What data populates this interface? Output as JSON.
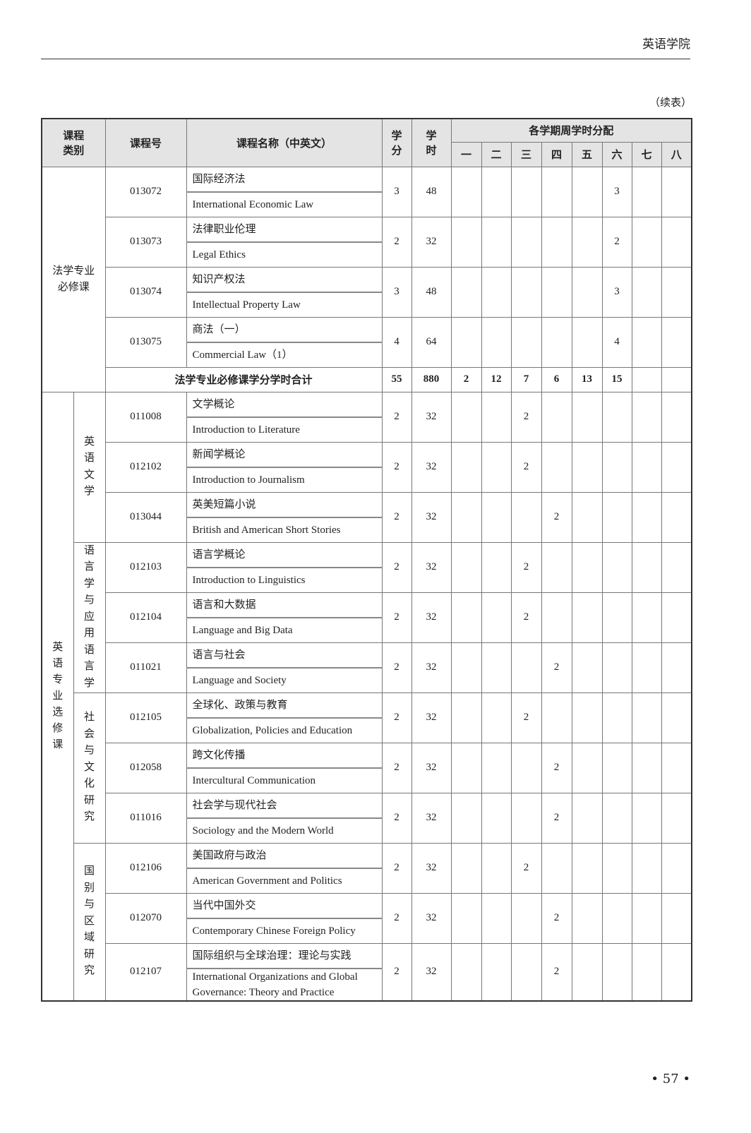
{
  "page": {
    "header_title": "英语学院",
    "continued_label": "（续表）",
    "page_number": "• 57 •"
  },
  "table": {
    "headers": {
      "category": "课程\n类别",
      "code": "课程号",
      "name": "课程名称（中英文）",
      "credits": "学\n分",
      "hours": "学\n时",
      "semester_group": "各学期周学时分配",
      "semesters": [
        "一",
        "二",
        "三",
        "四",
        "五",
        "六",
        "七",
        "八"
      ]
    },
    "groups": [
      {
        "category": "法学专业\n必修课",
        "subgroups": [
          {
            "name": "",
            "courses": [
              {
                "code": "013072",
                "cn": "国际经济法",
                "en": "International Economic Law",
                "credits": "3",
                "hours": "48",
                "sem": [
                  "",
                  "",
                  "",
                  "",
                  "",
                  "3",
                  "",
                  ""
                ]
              },
              {
                "code": "013073",
                "cn": "法律职业伦理",
                "en": "Legal Ethics",
                "credits": "2",
                "hours": "32",
                "sem": [
                  "",
                  "",
                  "",
                  "",
                  "",
                  "2",
                  "",
                  ""
                ]
              },
              {
                "code": "013074",
                "cn": "知识产权法",
                "en": "Intellectual Property Law",
                "credits": "3",
                "hours": "48",
                "sem": [
                  "",
                  "",
                  "",
                  "",
                  "",
                  "3",
                  "",
                  ""
                ]
              },
              {
                "code": "013075",
                "cn": "商法（一）",
                "en": "Commercial Law（1）",
                "credits": "4",
                "hours": "64",
                "sem": [
                  "",
                  "",
                  "",
                  "",
                  "",
                  "4",
                  "",
                  ""
                ]
              }
            ]
          }
        ],
        "total": {
          "label": "法学专业必修课学分学时合计",
          "credits": "55",
          "hours": "880",
          "sem": [
            "2",
            "12",
            "7",
            "6",
            "13",
            "15",
            "",
            ""
          ]
        }
      },
      {
        "category": "英\n语\n专\n业\n选\n修\n课",
        "subgroups": [
          {
            "name": "英语文学",
            "courses": [
              {
                "code": "011008",
                "cn": "文学概论",
                "en": "Introduction to Literature",
                "credits": "2",
                "hours": "32",
                "sem": [
                  "",
                  "",
                  "2",
                  "",
                  "",
                  "",
                  "",
                  ""
                ]
              },
              {
                "code": "012102",
                "cn": "新闻学概论",
                "en": "Introduction to Journalism",
                "credits": "2",
                "hours": "32",
                "sem": [
                  "",
                  "",
                  "2",
                  "",
                  "",
                  "",
                  "",
                  ""
                ]
              },
              {
                "code": "013044",
                "cn": "英美短篇小说",
                "en": "British and American Short Stories",
                "credits": "2",
                "hours": "32",
                "sem": [
                  "",
                  "",
                  "",
                  "2",
                  "",
                  "",
                  "",
                  ""
                ]
              }
            ]
          },
          {
            "name": "语言学与应用语言学",
            "courses": [
              {
                "code": "012103",
                "cn": "语言学概论",
                "en": "Introduction to Linguistics",
                "credits": "2",
                "hours": "32",
                "sem": [
                  "",
                  "",
                  "2",
                  "",
                  "",
                  "",
                  "",
                  ""
                ]
              },
              {
                "code": "012104",
                "cn": "语言和大数据",
                "en": "Language and Big Data",
                "credits": "2",
                "hours": "32",
                "sem": [
                  "",
                  "",
                  "2",
                  "",
                  "",
                  "",
                  "",
                  ""
                ]
              },
              {
                "code": "011021",
                "cn": "语言与社会",
                "en": "Language and Society",
                "credits": "2",
                "hours": "32",
                "sem": [
                  "",
                  "",
                  "",
                  "2",
                  "",
                  "",
                  "",
                  ""
                ]
              }
            ]
          },
          {
            "name": "社会与文化研究",
            "courses": [
              {
                "code": "012105",
                "cn": "全球化、政策与教育",
                "en": "Globalization, Policies and Education",
                "credits": "2",
                "hours": "32",
                "sem": [
                  "",
                  "",
                  "2",
                  "",
                  "",
                  "",
                  "",
                  ""
                ]
              },
              {
                "code": "012058",
                "cn": "跨文化传播",
                "en": "Intercultural Communication",
                "credits": "2",
                "hours": "32",
                "sem": [
                  "",
                  "",
                  "",
                  "2",
                  "",
                  "",
                  "",
                  ""
                ]
              },
              {
                "code": "011016",
                "cn": "社会学与现代社会",
                "en": "Sociology and the Modern World",
                "credits": "2",
                "hours": "32",
                "sem": [
                  "",
                  "",
                  "",
                  "2",
                  "",
                  "",
                  "",
                  ""
                ]
              }
            ]
          },
          {
            "name": "国别与区域研究",
            "courses": [
              {
                "code": "012106",
                "cn": "美国政府与政治",
                "en": "American Government and Politics",
                "credits": "2",
                "hours": "32",
                "sem": [
                  "",
                  "",
                  "2",
                  "",
                  "",
                  "",
                  "",
                  ""
                ]
              },
              {
                "code": "012070",
                "cn": "当代中国外交",
                "en": "Contemporary Chinese Foreign Policy",
                "credits": "2",
                "hours": "32",
                "sem": [
                  "",
                  "",
                  "",
                  "2",
                  "",
                  "",
                  "",
                  ""
                ]
              },
              {
                "code": "012107",
                "cn": "国际组织与全球治理：理论与实践",
                "en": "International Organizations and Global Governance: Theory and Practice",
                "credits": "2",
                "hours": "32",
                "sem": [
                  "",
                  "",
                  "",
                  "2",
                  "",
                  "",
                  "",
                  ""
                ]
              }
            ]
          }
        ]
      }
    ]
  }
}
